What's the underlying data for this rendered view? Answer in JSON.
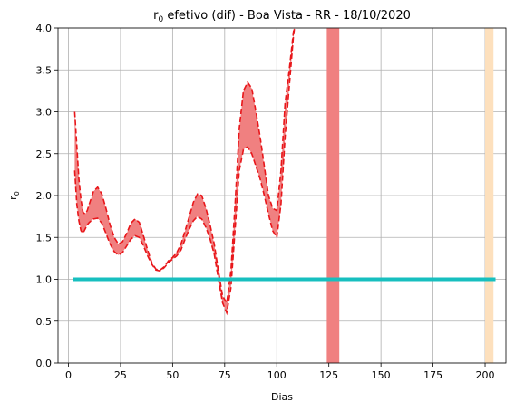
{
  "chart_data": {
    "type": "line",
    "title_main": "r",
    "title_sub": "0",
    "title_rest": " efetivo (dif) - Boa Vista - RR - 18/10/2020",
    "xlabel": "Dias",
    "ylabel_main": "r",
    "ylabel_sub": "0",
    "xlim": [
      -5,
      210
    ],
    "ylim": [
      0,
      4
    ],
    "xticks": [
      0,
      25,
      50,
      75,
      100,
      125,
      150,
      175,
      200
    ],
    "yticks": [
      "0.0",
      "0.5",
      "1.0",
      "1.5",
      "2.0",
      "2.5",
      "3.0",
      "3.5",
      "4.0"
    ],
    "grid": true,
    "colors": {
      "band_fill": "#f08080",
      "band_edge": "#e8161a",
      "threshold": "#17bfbf",
      "shade": "#fde0bd"
    },
    "threshold": {
      "y": 1.0,
      "x": [
        2,
        205
      ]
    },
    "shaded_regions": [
      {
        "x": [
          200,
          204
        ],
        "color": "#fde0bd"
      }
    ],
    "series": [
      {
        "role": "upper",
        "x": [
          3,
          4,
          5,
          6,
          7,
          8,
          9,
          10,
          12,
          14,
          16,
          18,
          20,
          22,
          24,
          26,
          28,
          30,
          32,
          34,
          36,
          38,
          40,
          42,
          44,
          46,
          48,
          50,
          52,
          54,
          56,
          58,
          60,
          62,
          64,
          66,
          68,
          70,
          72,
          74,
          76,
          78,
          80,
          82,
          84,
          86,
          88,
          90,
          92,
          94,
          96,
          98,
          100,
          102,
          104,
          106,
          108,
          109
        ],
        "y": [
          3.0,
          2.6,
          2.2,
          1.95,
          1.8,
          1.78,
          1.82,
          1.9,
          2.05,
          2.1,
          2.02,
          1.85,
          1.65,
          1.5,
          1.42,
          1.45,
          1.55,
          1.67,
          1.72,
          1.68,
          1.52,
          1.35,
          1.2,
          1.12,
          1.11,
          1.15,
          1.22,
          1.26,
          1.32,
          1.42,
          1.58,
          1.75,
          1.92,
          2.02,
          2.0,
          1.85,
          1.65,
          1.42,
          1.1,
          0.8,
          0.72,
          1.1,
          1.9,
          2.8,
          3.25,
          3.35,
          3.28,
          3.0,
          2.7,
          2.35,
          2.0,
          1.85,
          1.82,
          2.3,
          3.1,
          3.5,
          3.95,
          4.1
        ]
      },
      {
        "role": "lower",
        "x": [
          3,
          4,
          5,
          6,
          7,
          8,
          9,
          10,
          12,
          14,
          16,
          18,
          20,
          22,
          24,
          26,
          28,
          30,
          32,
          34,
          36,
          38,
          40,
          42,
          44,
          46,
          48,
          50,
          52,
          54,
          56,
          58,
          60,
          62,
          64,
          66,
          68,
          70,
          72,
          74,
          76,
          78,
          80,
          82,
          84,
          86,
          88,
          90,
          92,
          94,
          96,
          98,
          100,
          102,
          104,
          106,
          108,
          109
        ],
        "y": [
          2.3,
          1.9,
          1.7,
          1.58,
          1.55,
          1.6,
          1.65,
          1.68,
          1.72,
          1.73,
          1.67,
          1.55,
          1.42,
          1.33,
          1.29,
          1.32,
          1.4,
          1.48,
          1.52,
          1.5,
          1.4,
          1.28,
          1.18,
          1.11,
          1.1,
          1.14,
          1.2,
          1.24,
          1.28,
          1.35,
          1.48,
          1.6,
          1.7,
          1.75,
          1.72,
          1.62,
          1.48,
          1.3,
          1.0,
          0.72,
          0.6,
          0.9,
          1.6,
          2.3,
          2.55,
          2.58,
          2.5,
          2.35,
          2.2,
          2.0,
          1.78,
          1.58,
          1.5,
          1.9,
          2.7,
          3.3,
          3.9,
          4.1
        ]
      },
      {
        "role": "upper",
        "x": [
          124,
          125,
          126,
          127,
          128,
          129,
          130
        ],
        "y": [
          4.1,
          4.1,
          4.1,
          4.1,
          4.1,
          4.1,
          4.1
        ]
      },
      {
        "role": "lower",
        "x": [
          124,
          125,
          126,
          127,
          128,
          129,
          130
        ],
        "y": [
          -0.1,
          -0.1,
          -0.1,
          -0.1,
          -0.1,
          -0.1,
          -0.1
        ]
      }
    ]
  }
}
